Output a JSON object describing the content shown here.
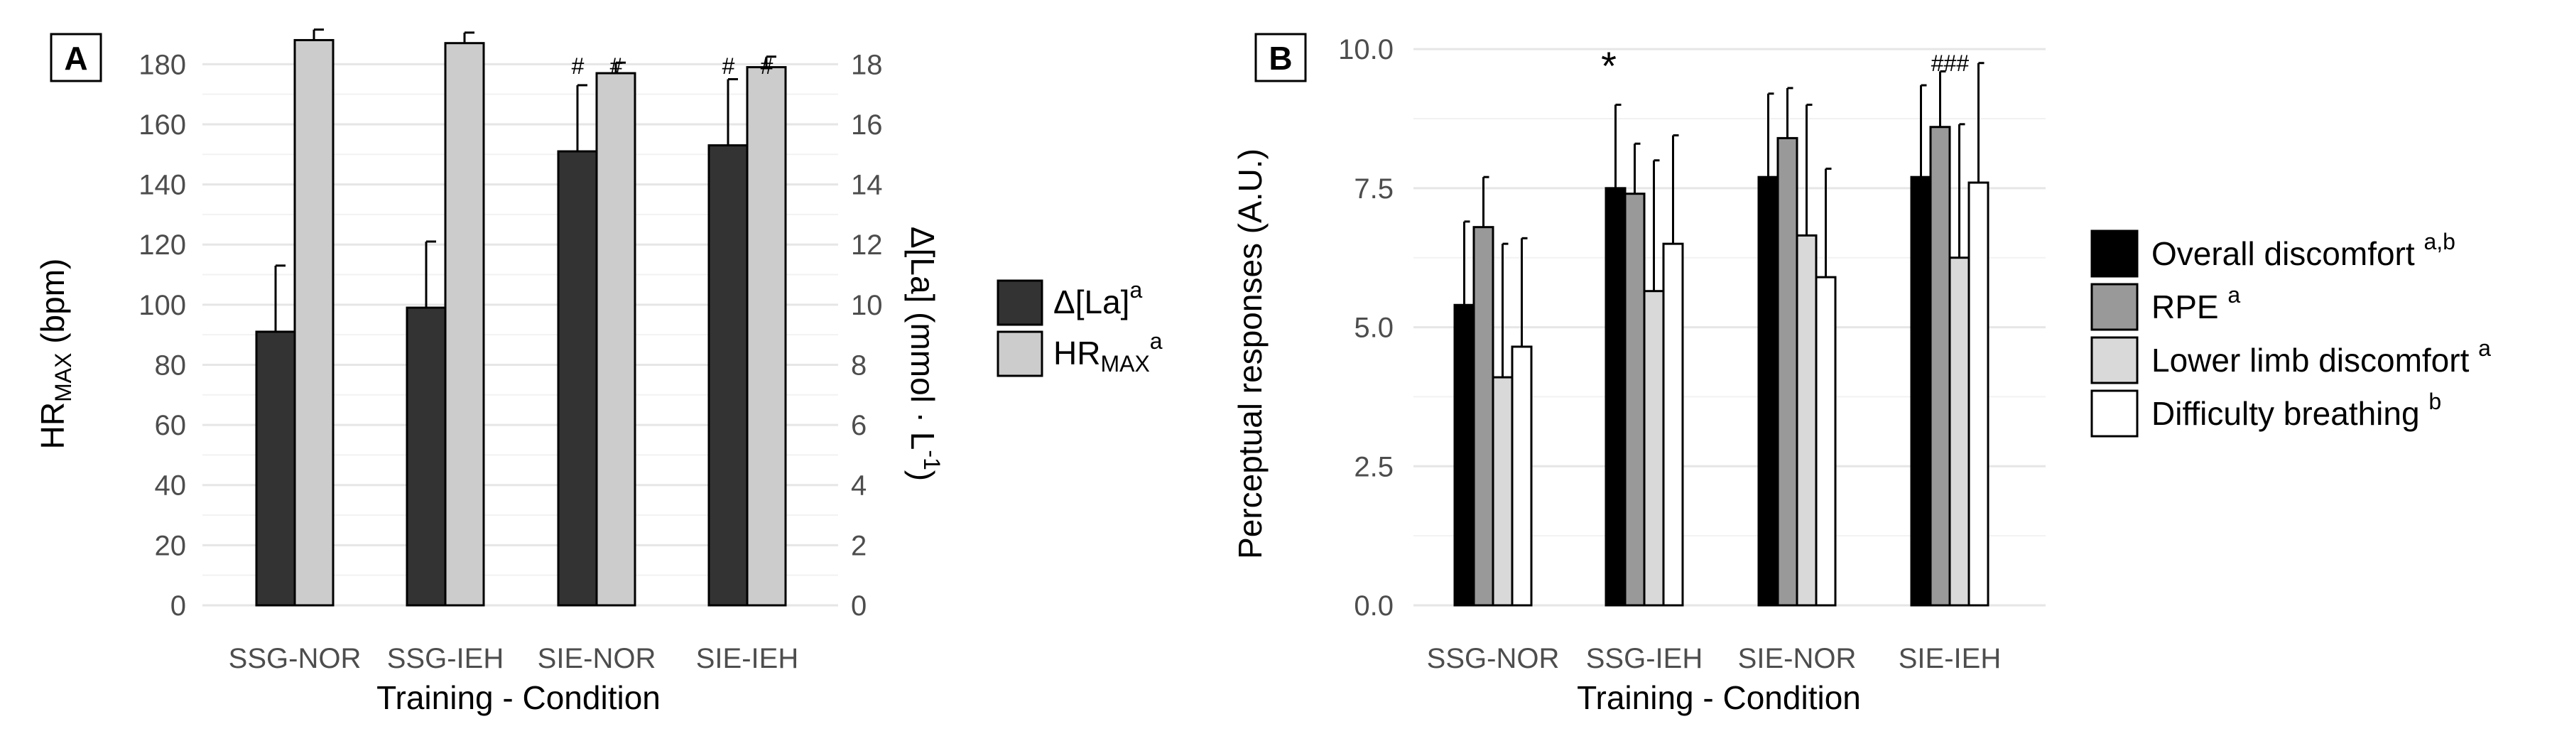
{
  "panels": [
    {
      "id": "A",
      "label": "A",
      "chart_data": {
        "type": "bar",
        "xlabel": "Training - Condition",
        "ylabel_left_main": "HR",
        "ylabel_left_sub": "MAX",
        "ylabel_left_unit": " (bpm)",
        "ylabel_right_text": "Δ[La] (mmol · L",
        "ylabel_right_sup": "-1",
        "ylabel_right_close": ")",
        "categories": [
          "SSG-NOR",
          "SSG-IEH",
          "SIE-NOR",
          "SIE-IEH"
        ],
        "ylim_left": [
          0,
          190
        ],
        "yticks_left": [
          0,
          20,
          40,
          60,
          80,
          100,
          120,
          140,
          160,
          180
        ],
        "ylim_right": [
          0,
          19
        ],
        "yticks_right": [
          0,
          2,
          4,
          6,
          8,
          10,
          12,
          14,
          16,
          18
        ],
        "grid": true,
        "legend_position": "right",
        "series": [
          {
            "name": "Δ[La]",
            "name_sup": "a",
            "axis": "right",
            "color": "#333333",
            "values": [
              9.1,
              9.9,
              15.1,
              15.3
            ],
            "errors": [
              2.2,
              2.2,
              2.2,
              2.2
            ]
          },
          {
            "name": "HR",
            "name_sub": "MAX",
            "name_sup": "a",
            "axis": "left",
            "color": "#cccccc",
            "values": [
              188,
              187,
              177,
              179
            ],
            "errors": [
              3.5,
              3.5,
              3.5,
              3.5
            ]
          }
        ],
        "annotations": [
          {
            "category": 2,
            "series": 0,
            "text": "#"
          },
          {
            "category": 2,
            "series": 1,
            "text": "#"
          },
          {
            "category": 3,
            "series": 0,
            "text": "#"
          },
          {
            "category": 3,
            "series": 1,
            "text": "#"
          }
        ]
      }
    },
    {
      "id": "B",
      "label": "B",
      "chart_data": {
        "type": "bar",
        "xlabel": "Training - Condition",
        "ylabel": "Perceptual responses (A.U.)",
        "categories": [
          "SSG-NOR",
          "SSG-IEH",
          "SIE-NOR",
          "SIE-IEH"
        ],
        "ylim": [
          0,
          10.5
        ],
        "yticks": [
          0,
          2.5,
          5,
          7.5,
          10
        ],
        "ytick_labels": [
          "0.0",
          "2.5",
          "5.0",
          "7.5",
          "10.0"
        ],
        "grid": true,
        "legend_position": "right",
        "series": [
          {
            "name": "Overall discomfort",
            "name_sup": "a,b",
            "color": "#000000",
            "values": [
              5.4,
              7.5,
              7.7,
              7.7
            ],
            "errors": [
              1.5,
              1.5,
              1.5,
              1.65
            ]
          },
          {
            "name": "RPE",
            "name_sup": "a",
            "color": "#999999",
            "values": [
              6.8,
              7.4,
              8.4,
              8.6
            ],
            "errors": [
              0.9,
              0.9,
              0.9,
              1.0
            ]
          },
          {
            "name": "Lower limb discomfort",
            "name_sup": "a",
            "color": "#d9d9d9",
            "values": [
              4.1,
              5.65,
              6.65,
              6.25
            ],
            "errors": [
              2.4,
              2.35,
              2.35,
              2.4
            ]
          },
          {
            "name": "Difficulty breathing",
            "name_sup": "b",
            "color": "#ffffff",
            "values": [
              4.65,
              6.5,
              5.9,
              7.6
            ],
            "errors": [
              1.95,
              1.95,
              1.95,
              2.15
            ]
          }
        ],
        "annotations": [
          {
            "category": 1,
            "text": "*"
          },
          {
            "category": 3,
            "text": "###"
          }
        ]
      }
    }
  ]
}
